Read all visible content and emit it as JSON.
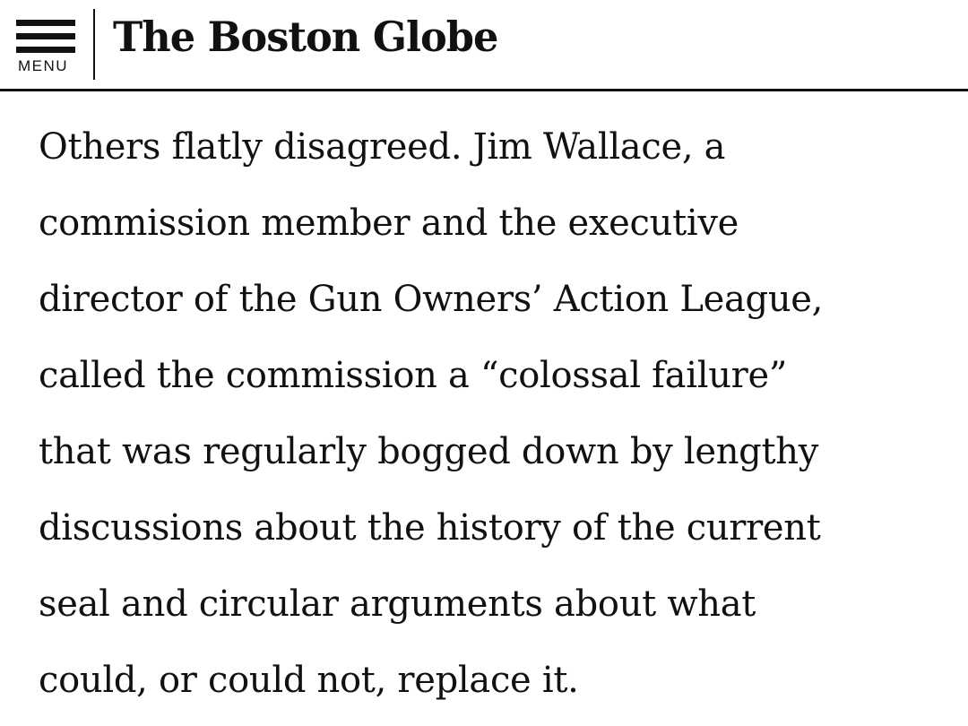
{
  "header": {
    "menu_label": "MENU",
    "logo_text": "The Boston Globe"
  },
  "article": {
    "lines": [
      "Others flatly disagreed. Jim Wallace, a",
      "commission member and the executive",
      "director of the Gun Owners’ Action League,",
      "called the commission a “colossal failure”",
      "that was regularly bogged down by lengthy",
      "discussions about the history of the current",
      "seal and circular arguments about what",
      "could, or could not, replace it."
    ]
  },
  "colors": {
    "text": "#111111",
    "background": "#ffffff"
  },
  "icons": {
    "menu": "hamburger-icon"
  }
}
